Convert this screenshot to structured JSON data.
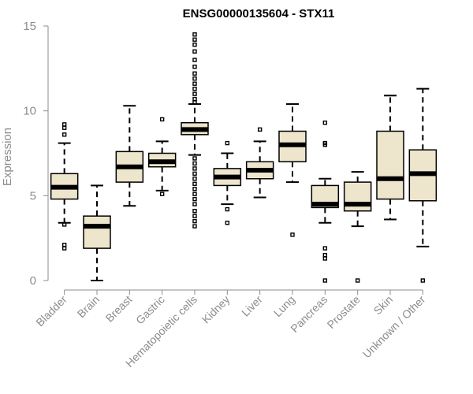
{
  "chart_data": {
    "type": "boxplot",
    "title": "ENSG00000135604 - STX11",
    "xlabel": "",
    "ylabel": "Expression",
    "ylim": [
      0,
      15
    ],
    "yticks": [
      0,
      5,
      10,
      15
    ],
    "grid": false,
    "box_color": "#ede5cc",
    "categories": [
      "Bladder",
      "Brain",
      "Breast",
      "Gastric",
      "Hematopoietic cells",
      "Kidney",
      "Liver",
      "Lung",
      "Pancreas",
      "Prostate",
      "Skin",
      "Unknown / Other"
    ],
    "tick_labels": [
      "Bladder",
      "Brain",
      "Breast",
      "Gastric",
      "Hematopoietic cells",
      "Kidney",
      "Liver",
      "Lung",
      "Pancreas",
      "Prostate",
      "Skin",
      "Unknown / Other"
    ],
    "boxes": [
      {
        "name": "Bladder",
        "whisker_low": 3.4,
        "q1": 4.8,
        "median": 5.5,
        "q3": 6.3,
        "whisker_high": 8.1,
        "outliers": [
          9.2,
          9.0,
          8.6,
          3.3,
          2.1,
          1.9
        ]
      },
      {
        "name": "Brain",
        "whisker_low": 0.0,
        "q1": 1.9,
        "median": 3.2,
        "q3": 3.8,
        "whisker_high": 5.6,
        "outliers": []
      },
      {
        "name": "Breast",
        "whisker_low": 4.4,
        "q1": 5.8,
        "median": 6.7,
        "q3": 7.6,
        "whisker_high": 10.3,
        "outliers": []
      },
      {
        "name": "Gastric",
        "whisker_low": 5.3,
        "q1": 6.7,
        "median": 7.0,
        "q3": 7.5,
        "whisker_high": 8.2,
        "outliers": [
          9.5,
          5.1
        ]
      },
      {
        "name": "Hematopoietic cells",
        "whisker_low": 7.4,
        "q1": 8.6,
        "median": 8.9,
        "q3": 9.3,
        "whisker_high": 10.4,
        "outliers": [
          14.5,
          14.2,
          13.9,
          13.5,
          13.0,
          12.6,
          12.2,
          11.9,
          11.6,
          11.3,
          11.0,
          10.7,
          10.5,
          7.2,
          6.9,
          6.6,
          6.3,
          6.0,
          5.7,
          5.4,
          5.1,
          4.8,
          4.5,
          4.1,
          3.8,
          3.5,
          3.2
        ]
      },
      {
        "name": "Kidney",
        "whisker_low": 4.5,
        "q1": 5.6,
        "median": 6.1,
        "q3": 6.6,
        "whisker_high": 7.5,
        "outliers": [
          8.1,
          4.2,
          3.4
        ]
      },
      {
        "name": "Liver",
        "whisker_low": 4.9,
        "q1": 6.0,
        "median": 6.5,
        "q3": 7.0,
        "whisker_high": 8.2,
        "outliers": [
          8.9
        ]
      },
      {
        "name": "Lung",
        "whisker_low": 5.8,
        "q1": 7.0,
        "median": 8.0,
        "q3": 8.8,
        "whisker_high": 10.4,
        "outliers": [
          2.7
        ]
      },
      {
        "name": "Pancreas",
        "whisker_low": 3.4,
        "q1": 4.3,
        "median": 4.5,
        "q3": 5.6,
        "whisker_high": 6.0,
        "outliers": [
          9.3,
          8.1,
          8.0,
          1.9,
          1.5,
          1.3,
          0.0
        ]
      },
      {
        "name": "Prostate",
        "whisker_low": 3.2,
        "q1": 4.1,
        "median": 4.5,
        "q3": 5.8,
        "whisker_high": 6.4,
        "outliers": [
          0.0
        ]
      },
      {
        "name": "Skin",
        "whisker_low": 3.6,
        "q1": 4.8,
        "median": 6.0,
        "q3": 8.8,
        "whisker_high": 10.9,
        "outliers": []
      },
      {
        "name": "Unknown / Other",
        "whisker_low": 2.0,
        "q1": 4.7,
        "median": 6.3,
        "q3": 7.7,
        "whisker_high": 11.3,
        "outliers": [
          0.0
        ]
      }
    ]
  }
}
